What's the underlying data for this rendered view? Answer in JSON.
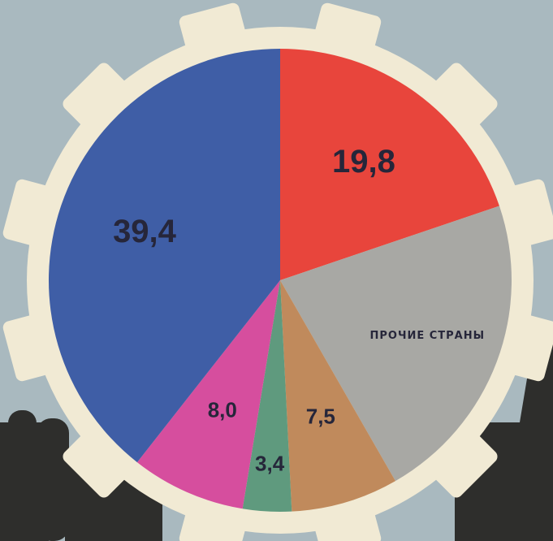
{
  "chart_data": {
    "type": "pie",
    "categories": [
      null,
      "ПРОЧИЕ СТРАНЫ",
      null,
      null,
      null,
      null
    ],
    "values": [
      19.8,
      21.9,
      7.5,
      3.4,
      8.0,
      39.4
    ],
    "value_labels": [
      "19,8",
      null,
      "7,5",
      "3,4",
      "8,0",
      "39,4"
    ],
    "colors": [
      "#e8453c",
      "#a8a8a4",
      "#c08a5c",
      "#5f9a7e",
      "#d64e9e",
      "#3f5ea6"
    ]
  }
}
